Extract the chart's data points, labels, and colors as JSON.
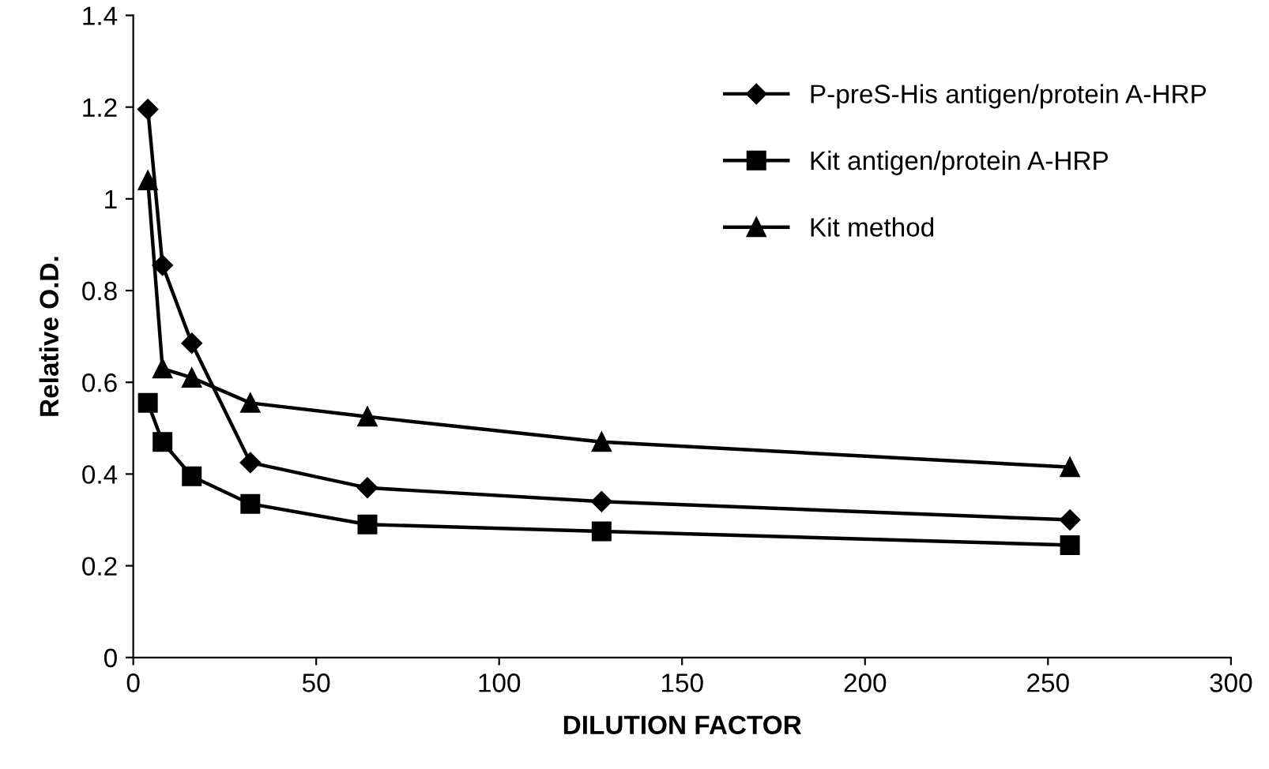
{
  "chart_data": {
    "type": "line",
    "xlabel": "DILUTION FACTOR",
    "ylabel": "Relative O.D.",
    "xlim": [
      0,
      300
    ],
    "ylim": [
      0,
      1.4
    ],
    "xticks": [
      0,
      50,
      100,
      150,
      200,
      250,
      300
    ],
    "yticks": [
      0,
      0.2,
      0.4,
      0.6,
      0.8,
      1,
      1.2,
      1.4
    ],
    "grid": false,
    "legend": "top right",
    "x": [
      4,
      8,
      16,
      32,
      64,
      128,
      256
    ],
    "series": [
      {
        "name": "P-preS-His antigen/protein A-HRP",
        "color": "#000000",
        "marker": "diamond",
        "values": [
          1.195,
          0.855,
          0.685,
          0.425,
          0.37,
          0.34,
          0.3
        ]
      },
      {
        "name": "Kit antigen/protein A-HRP",
        "color": "#000000",
        "marker": "square",
        "values": [
          0.555,
          0.47,
          0.395,
          0.335,
          0.29,
          0.275,
          0.245
        ]
      },
      {
        "name": "Kit method",
        "color": "#000000",
        "marker": "triangle",
        "values": [
          1.04,
          0.63,
          0.61,
          0.555,
          0.525,
          0.47,
          0.415
        ]
      }
    ]
  }
}
